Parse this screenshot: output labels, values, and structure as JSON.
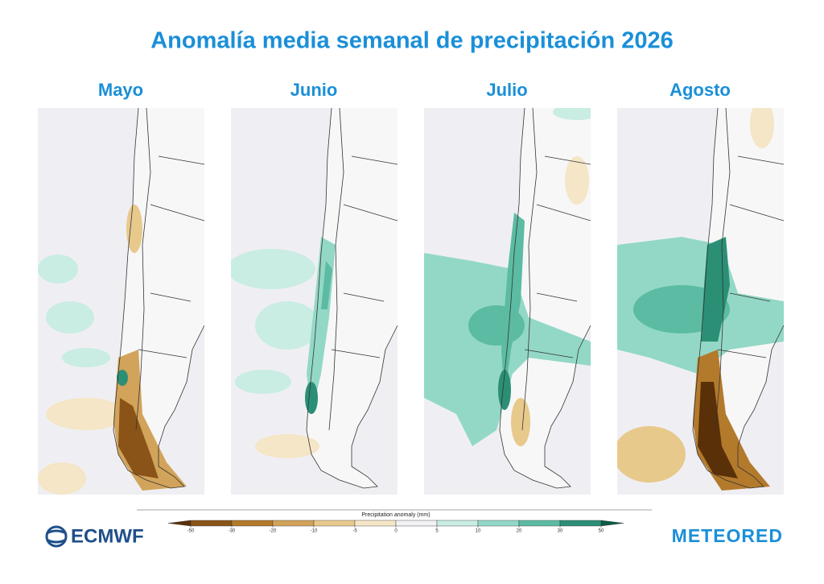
{
  "title": "Anomalía media semanal de precipitación 2026",
  "panels": [
    "Mayo",
    "Junio",
    "Julio",
    "Agosto"
  ],
  "colorbar": {
    "label": "Precipitation anomaly (mm)",
    "ticks": [
      -50,
      -30,
      -20,
      -10,
      -5,
      0,
      5,
      10,
      20,
      30,
      50
    ],
    "colors": [
      "#8a5418",
      "#b37a2c",
      "#d2a35a",
      "#e8c98c",
      "#f4e6c6",
      "#f2f1f4",
      "#c9ece3",
      "#93d8c6",
      "#5cbba3",
      "#2b8f76"
    ],
    "under_color": "#5a3008",
    "over_color": "#0d5a47"
  },
  "logos": {
    "left": "ECMWF",
    "right": "METEORED"
  }
}
